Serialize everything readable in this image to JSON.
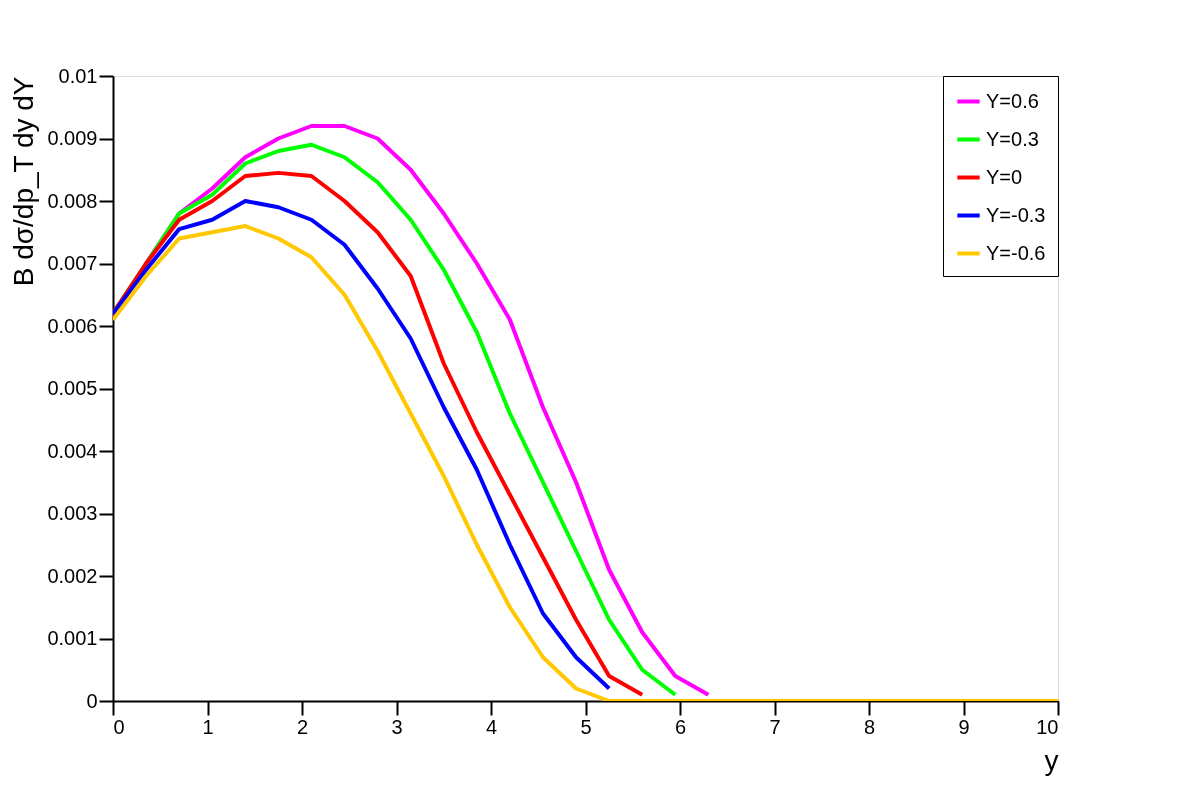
{
  "chart_data": {
    "type": "line",
    "xlabel": "y",
    "ylabel": "B dσ/dp_T dy dY",
    "x": [
      0,
      0.35,
      0.7,
      1.05,
      1.4,
      1.75,
      2.1,
      2.45,
      2.8,
      3.15,
      3.5,
      3.85,
      4.2,
      4.55,
      4.9,
      5.25,
      5.6,
      5.95,
      6.3,
      6.65,
      7,
      10
    ],
    "series": [
      {
        "name": "Y=0.6",
        "color": "#ff00ff",
        "values": [
          0.0061,
          0.007,
          0.0078,
          0.0082,
          0.0087,
          0.009,
          0.0092,
          0.0092,
          0.009,
          0.0085,
          0.0078,
          0.007,
          0.0061,
          0.0047,
          0.0035,
          0.0021,
          0.0011,
          0.0004,
          0.0001,
          null,
          null,
          null
        ]
      },
      {
        "name": "Y=0.3",
        "color": "#00ff00",
        "values": [
          0.0062,
          0.007,
          0.0078,
          0.0081,
          0.0086,
          0.0088,
          0.0089,
          0.0087,
          0.0083,
          0.0077,
          0.0069,
          0.0059,
          0.0046,
          0.0035,
          0.0024,
          0.0013,
          0.0005,
          0.0001,
          null,
          null,
          null,
          null
        ]
      },
      {
        "name": "Y=0",
        "color": "#ff0000",
        "values": [
          0.0062,
          0.007,
          0.0077,
          0.008,
          0.0084,
          0.00845,
          0.0084,
          0.008,
          0.0075,
          0.0068,
          0.0054,
          0.0043,
          0.0033,
          0.0023,
          0.0013,
          0.0004,
          0.0001,
          null,
          null,
          null,
          null,
          null
        ]
      },
      {
        "name": "Y=-0.3",
        "color": "#0000ff",
        "values": [
          0.0062,
          0.0069,
          0.00755,
          0.0077,
          0.008,
          0.0079,
          0.0077,
          0.0073,
          0.0066,
          0.0058,
          0.0047,
          0.0037,
          0.0025,
          0.0014,
          0.0007,
          0.0002,
          null,
          null,
          null,
          null,
          null,
          null
        ]
      },
      {
        "name": "Y=-0.6",
        "color": "#ffc800",
        "values": [
          0.0061,
          0.0068,
          0.0074,
          0.0075,
          0.0076,
          0.0074,
          0.0071,
          0.0065,
          0.0056,
          0.0046,
          0.0036,
          0.0025,
          0.0015,
          0.0007,
          0.0002,
          0,
          0,
          0,
          0,
          0,
          0,
          0
        ]
      }
    ],
    "xlim": [
      0,
      10
    ],
    "xticks": [
      0,
      1,
      2,
      3,
      4,
      5,
      6,
      7,
      8,
      9,
      10
    ],
    "ylim": [
      0,
      0.01
    ],
    "yticks": [
      0,
      0.001,
      0.002,
      0.003,
      0.004,
      0.005,
      0.006,
      0.007,
      0.008,
      0.009,
      0.01
    ],
    "grid": false,
    "legend": "top right",
    "marker": "none",
    "line_style": "solid"
  }
}
